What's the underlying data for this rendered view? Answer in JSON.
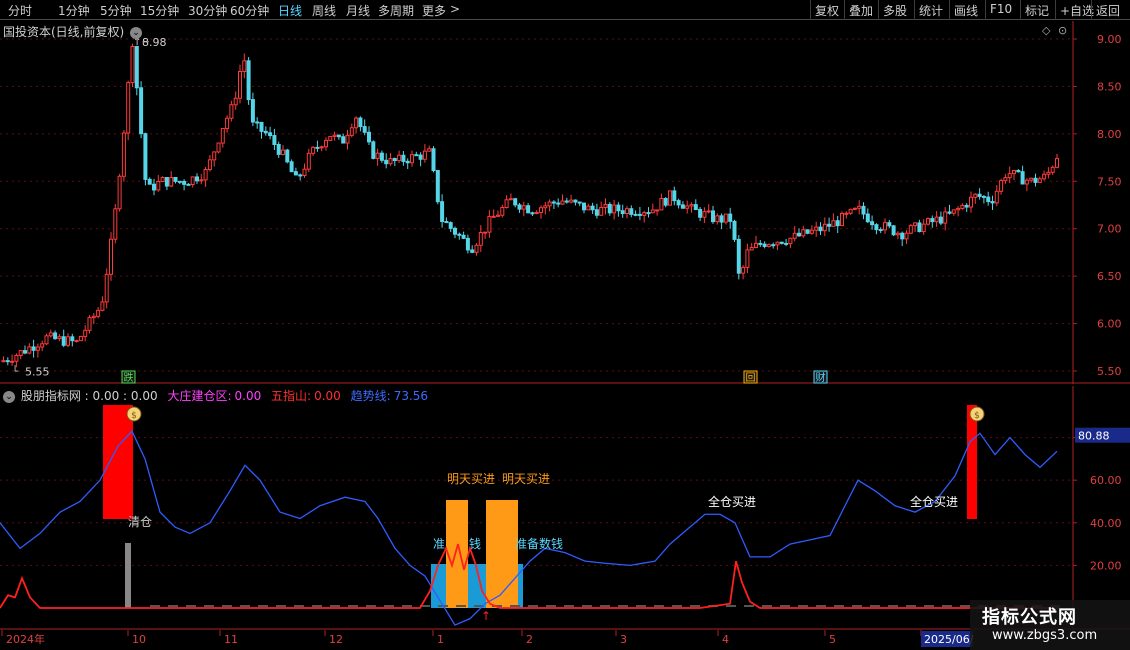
{
  "toolbar": {
    "periods": [
      "分时",
      "1分钟",
      "5分钟",
      "15分钟",
      "30分钟",
      "60分钟",
      "日线",
      "周线",
      "月线",
      "多周期",
      "更多"
    ],
    "active_period": "日线",
    "more_arrow": ">",
    "actions": [
      "复权",
      "叠加",
      "多股",
      "统计",
      "画线",
      "F10",
      "标记",
      "+自选",
      "返回"
    ]
  },
  "price_panel": {
    "title": "国投资本(日线,前复权)",
    "high_label": "8.98",
    "low_label": "5.55",
    "y_ticks": [
      "9.00",
      "8.50",
      "8.00",
      "7.50",
      "7.00",
      "6.50",
      "6.00",
      "5.50"
    ],
    "markers": [
      {
        "text": "跌",
        "color": "#55dd55"
      },
      {
        "text": "回",
        "color": "#ffb000"
      },
      {
        "text": "财",
        "color": "#5ad6ff"
      }
    ],
    "colors": {
      "up": "#ff3a3a",
      "down": "#54d6e8"
    }
  },
  "indicator_panel": {
    "title_prefix": "股朋指标网 : 0.00 : 0.00",
    "fields": [
      {
        "label": "大庄建仓区:",
        "value": "0.00",
        "color": "#ff40ff"
      },
      {
        "label": "五指山:",
        "value": "0.00",
        "color": "#ff3030"
      },
      {
        "label": "趋势线:",
        "value": "73.56",
        "color": "#3b6cff"
      }
    ],
    "y_ticks": [
      "80.00",
      "60.00",
      "40.00",
      "20.00"
    ],
    "current_value": "80.88",
    "annotations": {
      "clear": "清仓",
      "buy_tomorrow_1": "明天买进",
      "buy_tomorrow_2": "明天买进",
      "full_buy_1": "全仓买进",
      "full_buy_2": "全仓买进",
      "prepare_1": "准",
      "prepare_1b": "钱",
      "prepare_2": "准备数钱"
    }
  },
  "time_axis": {
    "labels": [
      "2024年",
      "10",
      "11",
      "12",
      "1",
      "2",
      "3",
      "4",
      "5",
      "2025/06/"
    ]
  },
  "watermark": {
    "line1": "指标公式网",
    "line2": "www.zbgs3.com"
  }
}
